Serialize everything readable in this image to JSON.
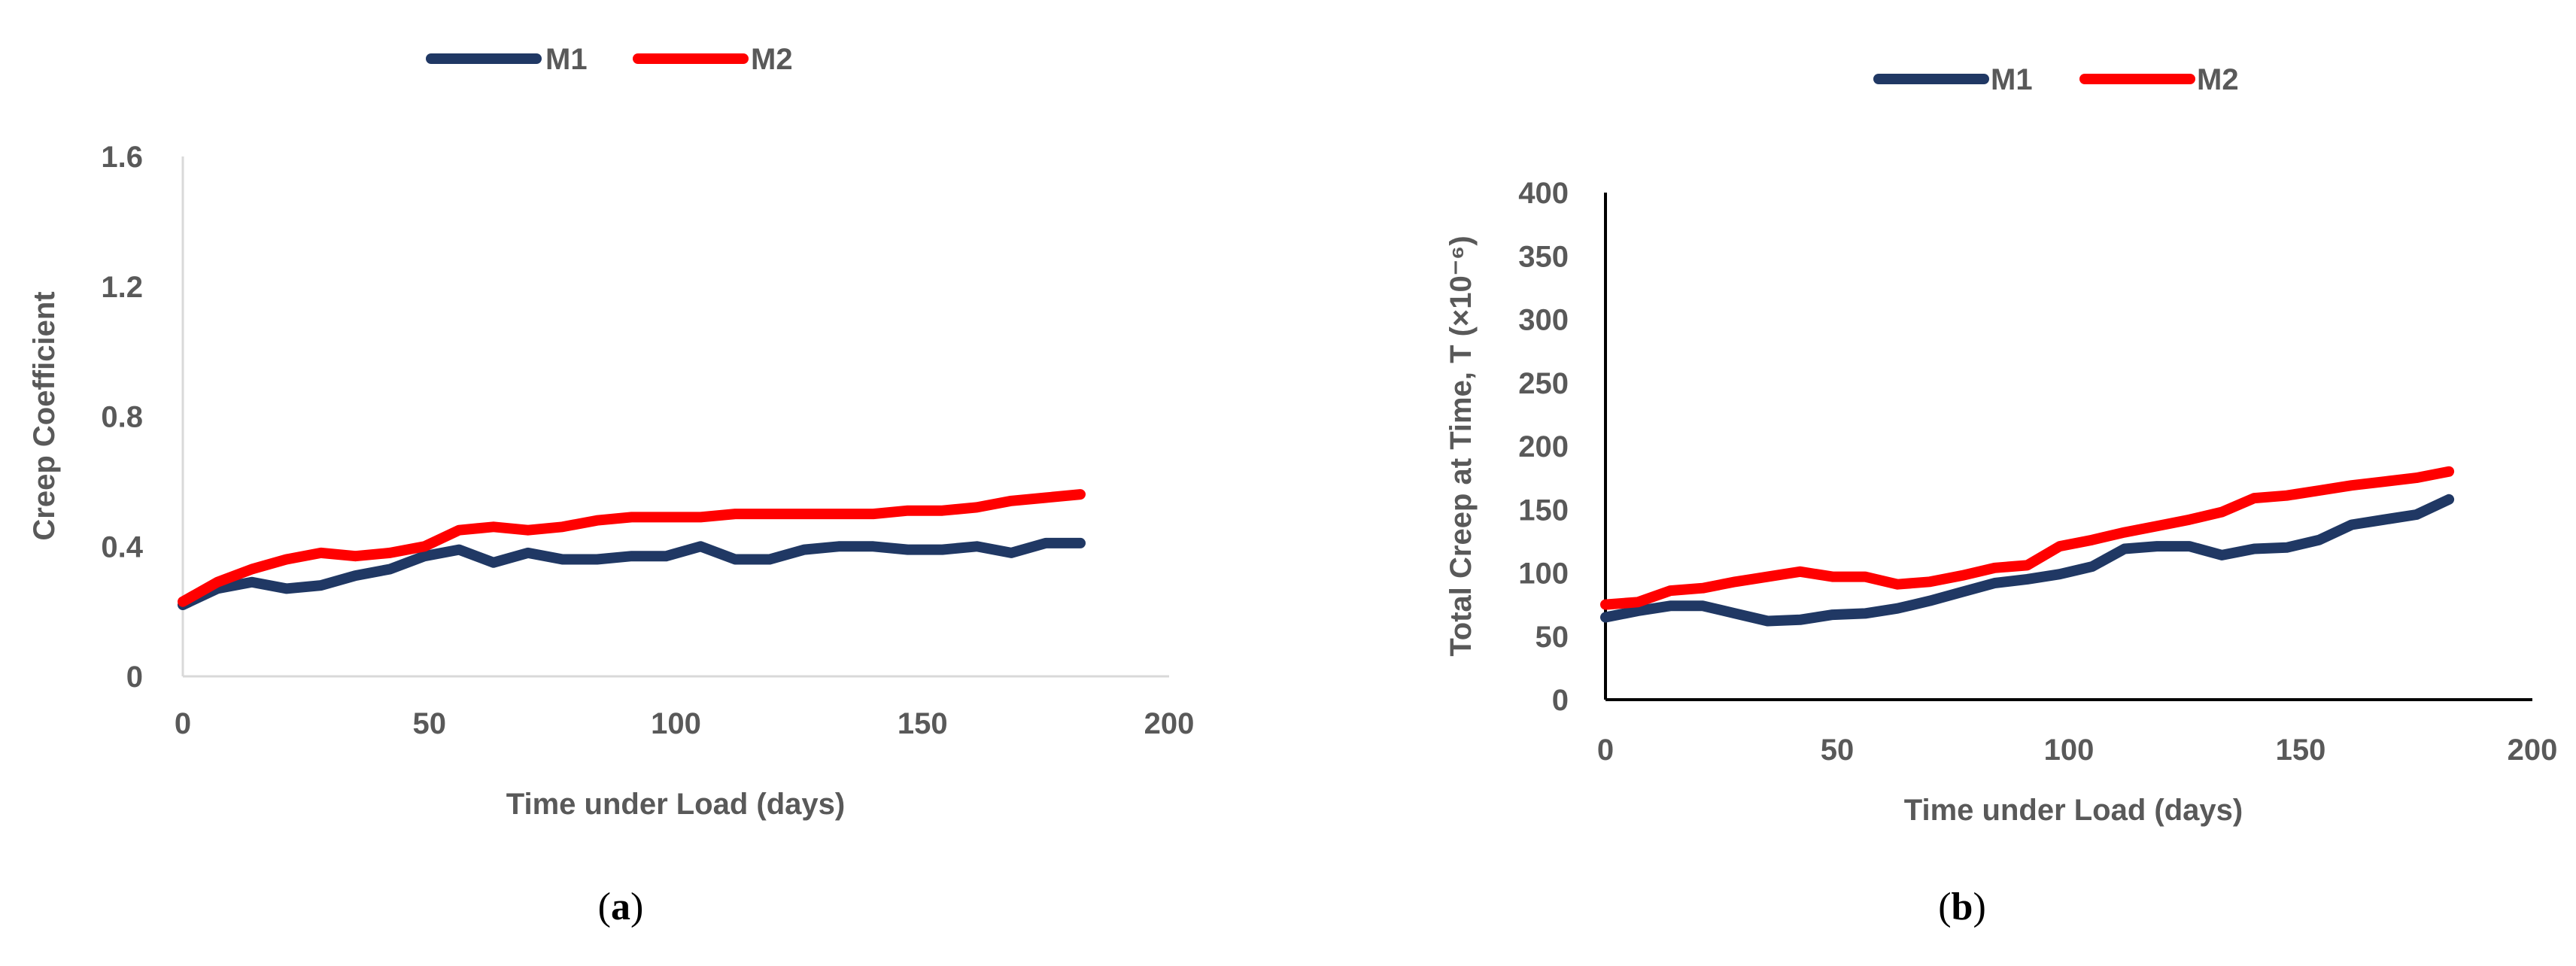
{
  "colors": {
    "M1": "#203864",
    "M2": "#ff0000",
    "axis_a": "#d9d9d9",
    "axis_b": "#000000",
    "text": "#595959"
  },
  "chart_data": [
    {
      "type": "line",
      "panel_label": "a",
      "title": "",
      "xlabel": "Time under Load (days)",
      "ylabel": "Creep Coefficient",
      "xlim": [
        0,
        200
      ],
      "ylim": [
        0,
        1.6
      ],
      "xticks": [
        0,
        50,
        100,
        150,
        200
      ],
      "yticks": [
        0,
        0.4,
        0.8,
        1.2,
        1.6
      ],
      "ytick_labels": [
        "0",
        "0.4",
        "0.8",
        "1.2",
        "1.6"
      ],
      "legend": [
        "M1",
        "M2"
      ],
      "legend_position": "top-center",
      "series": [
        {
          "name": "M1",
          "x": [
            0,
            7,
            14,
            21,
            28,
            35,
            42,
            49,
            56,
            63,
            70,
            77,
            84,
            91,
            98,
            105,
            112,
            119,
            126,
            133,
            140,
            147,
            154,
            161,
            168,
            175,
            182
          ],
          "y": [
            0.22,
            0.27,
            0.29,
            0.27,
            0.28,
            0.31,
            0.33,
            0.37,
            0.39,
            0.35,
            0.38,
            0.36,
            0.36,
            0.37,
            0.37,
            0.4,
            0.36,
            0.36,
            0.39,
            0.4,
            0.4,
            0.39,
            0.39,
            0.4,
            0.38,
            0.41,
            0.41
          ]
        },
        {
          "name": "M2",
          "x": [
            0,
            7,
            14,
            21,
            28,
            35,
            42,
            49,
            56,
            63,
            70,
            77,
            84,
            91,
            98,
            105,
            112,
            119,
            126,
            133,
            140,
            147,
            154,
            161,
            168,
            175,
            182
          ],
          "y": [
            0.23,
            0.29,
            0.33,
            0.36,
            0.38,
            0.37,
            0.38,
            0.4,
            0.45,
            0.46,
            0.45,
            0.46,
            0.48,
            0.49,
            0.49,
            0.49,
            0.5,
            0.5,
            0.5,
            0.5,
            0.5,
            0.51,
            0.51,
            0.52,
            0.54,
            0.55,
            0.56
          ]
        }
      ]
    },
    {
      "type": "line",
      "panel_label": "b",
      "title": "",
      "xlabel": "Time under Load (days)",
      "ylabel": "Total Creep at Time, T (×10⁻⁶)",
      "xlim": [
        0,
        200
      ],
      "ylim": [
        0,
        400
      ],
      "xticks": [
        0,
        50,
        100,
        150,
        200
      ],
      "yticks": [
        0,
        50,
        100,
        150,
        200,
        250,
        300,
        350,
        400
      ],
      "ytick_labels": [
        "0",
        "50",
        "100",
        "150",
        "200",
        "250",
        "300",
        "350",
        "400"
      ],
      "legend": [
        "M1",
        "M2"
      ],
      "legend_position": "top-center",
      "series": [
        {
          "name": "M1",
          "x": [
            0,
            7,
            14,
            21,
            28,
            35,
            42,
            49,
            56,
            63,
            70,
            77,
            84,
            91,
            98,
            105,
            112,
            119,
            126,
            133,
            140,
            147,
            154,
            161,
            168,
            175,
            182
          ],
          "y": [
            65,
            70,
            74,
            74,
            68,
            62,
            63,
            67,
            68,
            72,
            78,
            85,
            92,
            95,
            99,
            105,
            119,
            121,
            121,
            114,
            119,
            120,
            126,
            138,
            142,
            146,
            158
          ]
        },
        {
          "name": "M2",
          "x": [
            0,
            7,
            14,
            21,
            28,
            35,
            42,
            49,
            56,
            63,
            70,
            77,
            84,
            91,
            98,
            105,
            112,
            119,
            126,
            133,
            140,
            147,
            154,
            161,
            168,
            175,
            182
          ],
          "y": [
            75,
            77,
            86,
            88,
            93,
            97,
            101,
            97,
            97,
            91,
            93,
            98,
            104,
            106,
            121,
            126,
            132,
            137,
            142,
            148,
            159,
            161,
            165,
            169,
            172,
            175,
            180
          ]
        }
      ]
    }
  ]
}
